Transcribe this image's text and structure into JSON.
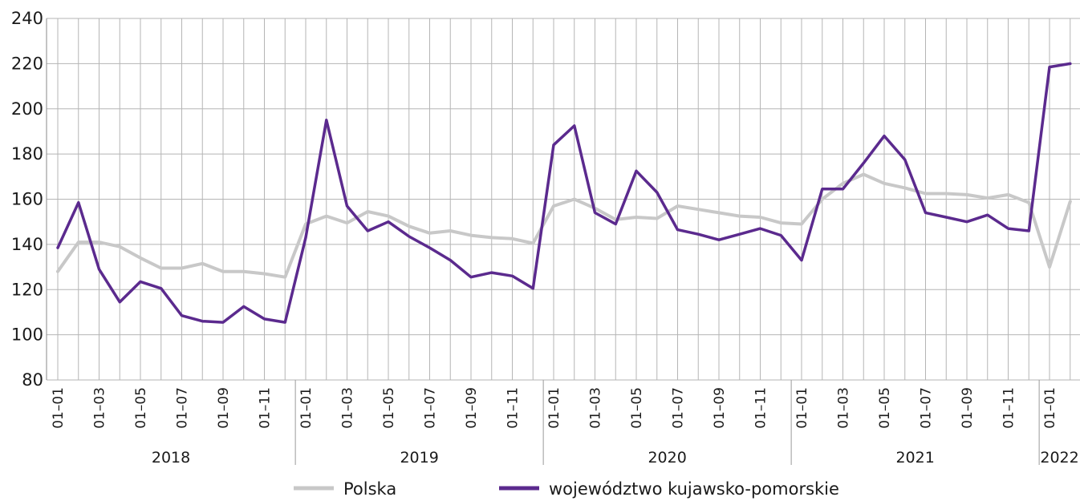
{
  "chart_data": {
    "type": "line",
    "title": "",
    "xlabel": "",
    "ylabel": "",
    "ylim": [
      80,
      240
    ],
    "yticks": [
      80,
      100,
      120,
      140,
      160,
      180,
      200,
      220,
      240
    ],
    "grid": true,
    "legend_position": "bottom-center",
    "x": [
      "2018-01",
      "2018-02",
      "2018-03",
      "2018-04",
      "2018-05",
      "2018-06",
      "2018-07",
      "2018-08",
      "2018-09",
      "2018-10",
      "2018-11",
      "2018-12",
      "2019-01",
      "2019-02",
      "2019-03",
      "2019-04",
      "2019-05",
      "2019-06",
      "2019-07",
      "2019-08",
      "2019-09",
      "2019-10",
      "2019-11",
      "2019-12",
      "2020-01",
      "2020-02",
      "2020-03",
      "2020-04",
      "2020-05",
      "2020-06",
      "2020-07",
      "2020-08",
      "2020-09",
      "2020-10",
      "2020-11",
      "2020-12",
      "2021-01",
      "2021-02",
      "2021-03",
      "2021-04",
      "2021-05",
      "2021-06",
      "2021-07",
      "2021-08",
      "2021-09",
      "2021-10",
      "2021-11",
      "2021-12",
      "2022-01",
      "2022-02"
    ],
    "x_tick_labels": [
      "01–01",
      "01–03",
      "01–05",
      "01–07",
      "01–09",
      "01–11",
      "01–01",
      "01–03",
      "01–05",
      "01–07",
      "01–09",
      "01–11",
      "01–01",
      "01–03",
      "01–05",
      "01–07",
      "01–09",
      "01–11",
      "01–01",
      "01–03",
      "01–05",
      "01–07",
      "01–09",
      "01–11",
      "01–01"
    ],
    "years": [
      {
        "label": "2018",
        "months": 12
      },
      {
        "label": "2019",
        "months": 12
      },
      {
        "label": "2020",
        "months": 12
      },
      {
        "label": "2021",
        "months": 12
      },
      {
        "label": "2022",
        "months": 2
      }
    ],
    "series": [
      {
        "name": "Polska",
        "color": "#c8c8c8",
        "values": [
          128,
          141,
          141,
          139,
          134,
          129.5,
          129.5,
          131.5,
          128,
          128,
          127,
          125.5,
          149,
          152.5,
          149.5,
          154.5,
          152.5,
          148,
          145,
          146,
          144,
          143,
          142.5,
          140.5,
          157,
          160,
          156,
          151,
          152,
          151.5,
          157,
          155.5,
          154,
          152.5,
          152,
          149.5,
          149,
          160,
          167,
          171,
          167,
          165,
          162.5,
          162.5,
          162,
          160.5,
          162,
          158.5,
          130,
          159
        ]
      },
      {
        "name": "województwo kujawsko-pomorskie",
        "color": "#5b2a8e",
        "values": [
          138.5,
          158.5,
          129,
          114.5,
          123.5,
          120.5,
          108.5,
          106,
          105.5,
          112.5,
          107,
          105.5,
          143,
          195,
          157,
          146,
          150,
          143.5,
          138.5,
          133,
          125.5,
          127.5,
          126,
          120.5,
          184,
          192.5,
          154,
          149,
          172.5,
          163,
          146.5,
          144.5,
          142,
          144.5,
          147,
          144,
          133,
          164.5,
          164.5,
          176,
          188,
          177.5,
          154,
          152,
          150,
          153,
          147,
          146,
          218.5,
          220
        ]
      }
    ]
  }
}
